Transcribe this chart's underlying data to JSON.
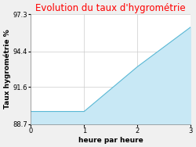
{
  "title": "Evolution du taux d'hygrométrie",
  "title_color": "#ff0000",
  "xlabel": "heure par heure",
  "ylabel": "Taux hygrométrie %",
  "x": [
    0,
    1,
    2,
    3
  ],
  "y": [
    89.7,
    89.7,
    93.2,
    96.3
  ],
  "fill_color": "#c8e8f5",
  "fill_alpha": 1.0,
  "line_color": "#5ab8d5",
  "line_width": 0.8,
  "ylim": [
    88.7,
    97.3
  ],
  "xlim": [
    0,
    3
  ],
  "yticks": [
    88.7,
    91.6,
    94.4,
    97.3
  ],
  "xticks": [
    0,
    1,
    2,
    3
  ],
  "grid_color": "#cccccc",
  "bg_color": "#f0f0f0",
  "plot_bg_color": "#ffffff",
  "title_fontsize": 8.5,
  "label_fontsize": 6.5,
  "tick_fontsize": 6
}
